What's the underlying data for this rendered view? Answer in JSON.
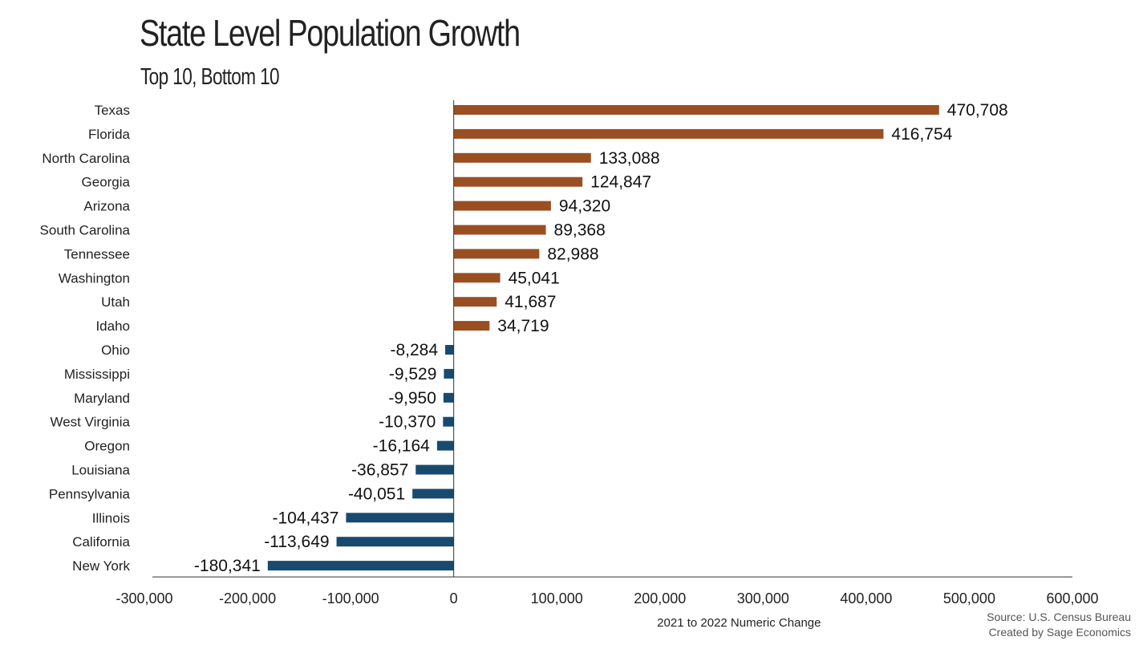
{
  "source": [
    "Source: U.S. Census Bureau",
    "Created by Sage Economics"
  ],
  "colors": {
    "positive": "#9a4f22",
    "negative": "#174a6e",
    "axis": "#333333"
  },
  "chart_data": {
    "type": "bar",
    "orientation": "horizontal",
    "title": "State Level Population Growth",
    "subtitle": "Top 10, Bottom 10",
    "xlabel": "2021 to 2022 Numeric Change",
    "xlim": [
      -300000,
      600000
    ],
    "xticks": [
      -300000,
      -200000,
      -100000,
      0,
      100000,
      200000,
      300000,
      400000,
      500000,
      600000
    ],
    "xtick_labels": [
      "-300,000",
      "-200,000",
      "-100,000",
      "0",
      "100,000",
      "200,000",
      "300,000",
      "400,000",
      "500,000",
      "600,000"
    ],
    "grid": false,
    "categories": [
      "Texas",
      "Florida",
      "North Carolina",
      "Georgia",
      "Arizona",
      "South Carolina",
      "Tennessee",
      "Washington",
      "Utah",
      "Idaho",
      "Ohio",
      "Mississippi",
      "Maryland",
      "West Virginia",
      "Oregon",
      "Louisiana",
      "Pennsylvania",
      "Illinois",
      "California",
      "New York"
    ],
    "values": [
      470708,
      416754,
      133088,
      124847,
      94320,
      89368,
      82988,
      45041,
      41687,
      34719,
      -8284,
      -9529,
      -9950,
      -10370,
      -16164,
      -36857,
      -40051,
      -104437,
      -113649,
      -180341
    ],
    "value_labels": [
      "470,708",
      "416,754",
      "133,088",
      "124,847",
      "94,320",
      "89,368",
      "82,988",
      "45,041",
      "41,687",
      "34,719",
      "-8,284",
      "-9,529",
      "-9,950",
      "-10,370",
      "-16,164",
      "-36,857",
      "-40,051",
      "-104,437",
      "-113,649",
      "-180,341"
    ]
  }
}
